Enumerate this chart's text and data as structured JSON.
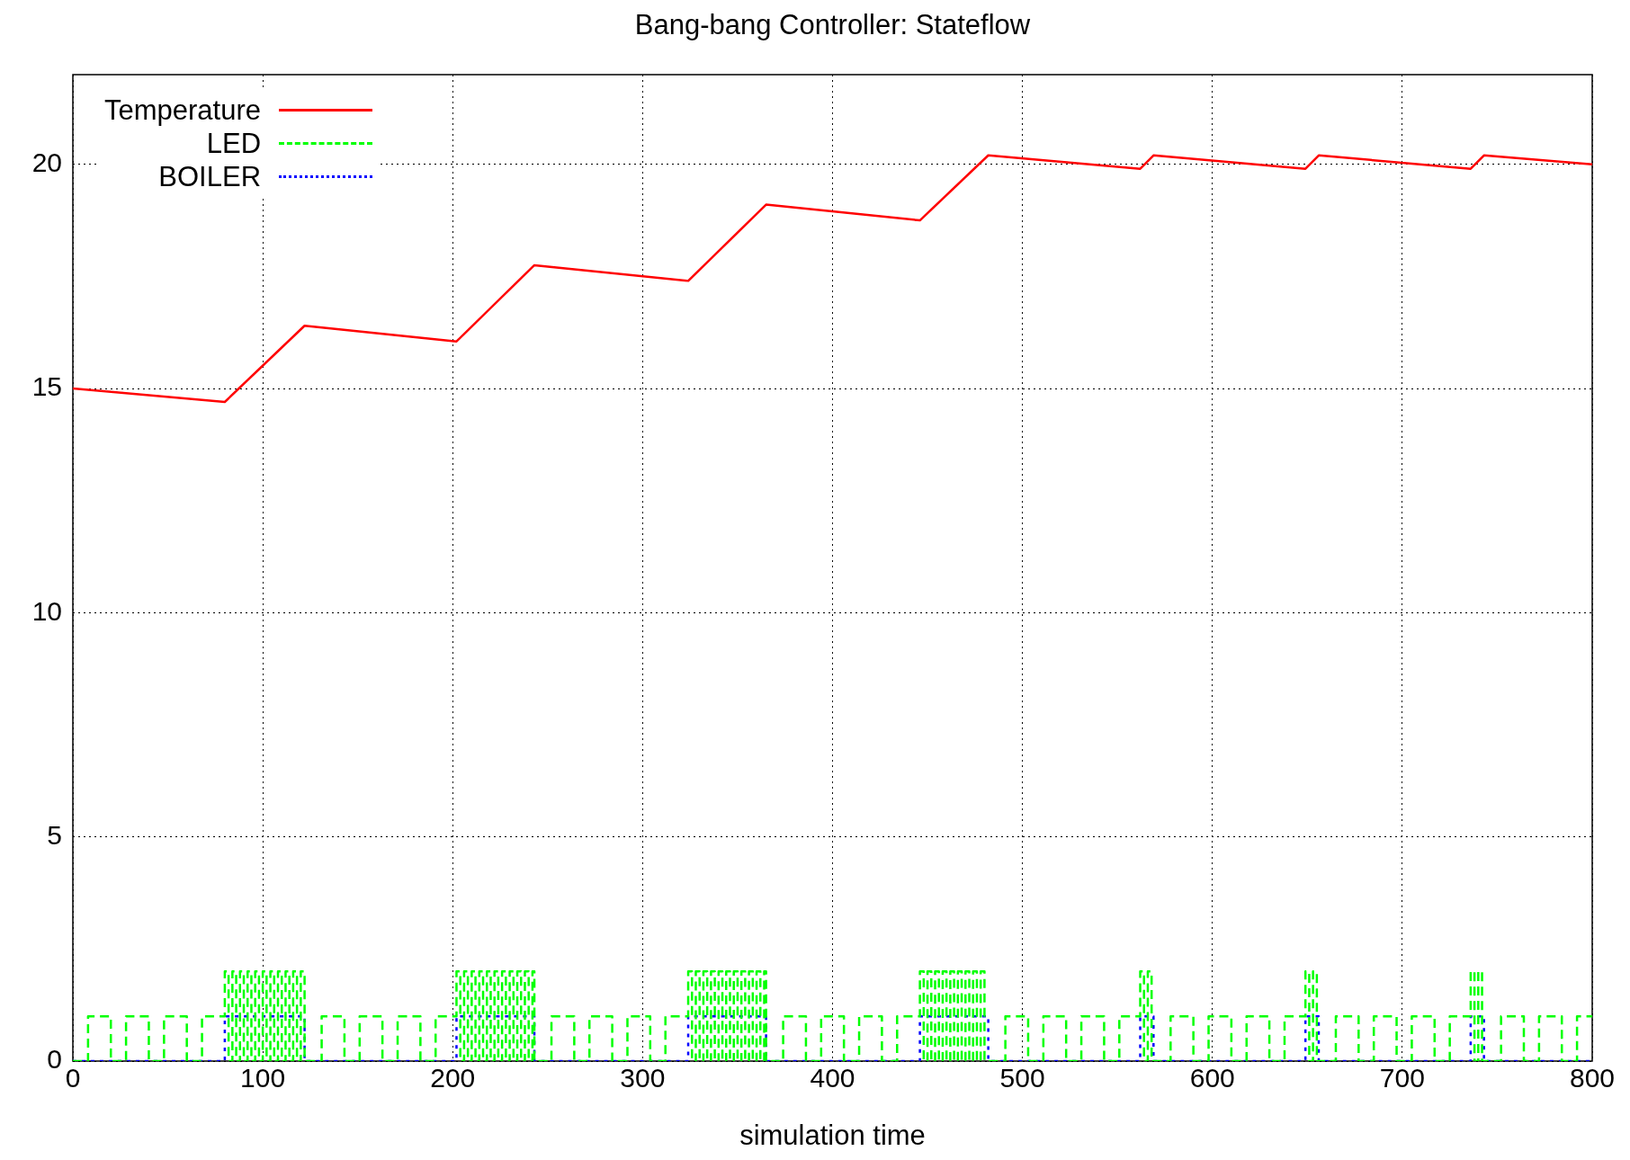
{
  "chart_data": {
    "type": "line",
    "title": "Bang-bang Controller: Stateflow",
    "xlabel": "simulation time",
    "xlim": [
      0,
      800
    ],
    "xticks": [
      0,
      100,
      200,
      300,
      400,
      500,
      600,
      700,
      800
    ],
    "ylim": [
      0,
      22
    ],
    "yticks": [
      0,
      5,
      10,
      15,
      20
    ],
    "grid": true,
    "legend": "top left",
    "marker": "none",
    "series": [
      {
        "name": "Temperature",
        "type": "line",
        "color": "#ff0000",
        "line_style": "solid",
        "x": [
          0,
          80,
          122,
          202,
          243,
          324,
          365,
          446,
          482,
          562,
          569,
          649,
          656,
          736,
          743,
          800
        ],
        "values": [
          15,
          14.7,
          16.4,
          16.05,
          17.75,
          17.4,
          19.1,
          18.75,
          20.2,
          19.9,
          20.2,
          19.9,
          20.2,
          19.9,
          20.2,
          20.0
        ]
      },
      {
        "name": "LED",
        "type": "step",
        "color": "#00ff00",
        "line_style": "dashed",
        "x": [
          0,
          8,
          20,
          28,
          40,
          48,
          60,
          68,
          80,
          82,
          84,
          86,
          88,
          90,
          92,
          94,
          96,
          98,
          100,
          102,
          104,
          106,
          108,
          110,
          112,
          114,
          116,
          118,
          120,
          122,
          131,
          143,
          151,
          163,
          171,
          183,
          191,
          202,
          204,
          206,
          208,
          210,
          212,
          214,
          216,
          218,
          220,
          222,
          224,
          226,
          228,
          230,
          232,
          234,
          236,
          238,
          240,
          242,
          243,
          252,
          264,
          272,
          284,
          292,
          304,
          312,
          324,
          326,
          328,
          330,
          332,
          334,
          336,
          338,
          340,
          342,
          344,
          346,
          348,
          350,
          352,
          354,
          356,
          358,
          360,
          362,
          364,
          365,
          374,
          386,
          394,
          406,
          414,
          426,
          434,
          446,
          448,
          450,
          452,
          454,
          456,
          458,
          460,
          462,
          464,
          466,
          468,
          470,
          472,
          474,
          476,
          478,
          480,
          491,
          503,
          511,
          523,
          531,
          543,
          551,
          562,
          564,
          566,
          568,
          578,
          590,
          598,
          610,
          618,
          630,
          638,
          649,
          651,
          653,
          655,
          665,
          677,
          685,
          697,
          705,
          717,
          725,
          736,
          738,
          740,
          742,
          752,
          764,
          772,
          784,
          792,
          800
        ],
        "values": [
          0,
          1,
          0,
          1,
          0,
          1,
          0,
          1,
          2,
          0,
          2,
          0,
          2,
          0,
          2,
          0,
          2,
          0,
          2,
          0,
          2,
          0,
          2,
          0,
          2,
          0,
          2,
          0,
          2,
          0,
          1,
          0,
          1,
          0,
          1,
          0,
          1,
          2,
          0,
          2,
          0,
          2,
          0,
          2,
          0,
          2,
          0,
          2,
          0,
          2,
          0,
          2,
          0,
          2,
          0,
          2,
          0,
          2,
          0,
          1,
          0,
          1,
          0,
          1,
          0,
          1,
          2,
          0,
          2,
          0,
          2,
          0,
          2,
          0,
          2,
          0,
          2,
          0,
          2,
          0,
          2,
          0,
          2,
          0,
          2,
          0,
          2,
          0,
          1,
          0,
          1,
          0,
          1,
          0,
          1,
          2,
          0,
          2,
          0,
          2,
          0,
          2,
          0,
          2,
          0,
          2,
          0,
          2,
          0,
          2,
          0,
          2,
          0,
          1,
          0,
          1,
          0,
          1,
          0,
          1,
          2,
          0,
          2,
          0,
          1,
          0,
          1,
          0,
          1,
          0,
          1,
          2,
          0,
          2,
          0,
          1,
          0,
          1,
          0,
          1,
          0,
          1,
          2,
          0,
          2,
          0,
          1,
          0,
          1,
          0,
          1,
          1
        ]
      },
      {
        "name": "BOILER",
        "type": "step",
        "color": "#0000ff",
        "line_style": "dotted",
        "x": [
          0,
          80,
          122,
          202,
          243,
          324,
          365,
          446,
          482,
          562,
          569,
          649,
          656,
          736,
          743,
          800
        ],
        "values": [
          0,
          1,
          0,
          1,
          0,
          1,
          0,
          1,
          0,
          1,
          0,
          1,
          0,
          1,
          0,
          0
        ]
      }
    ]
  }
}
